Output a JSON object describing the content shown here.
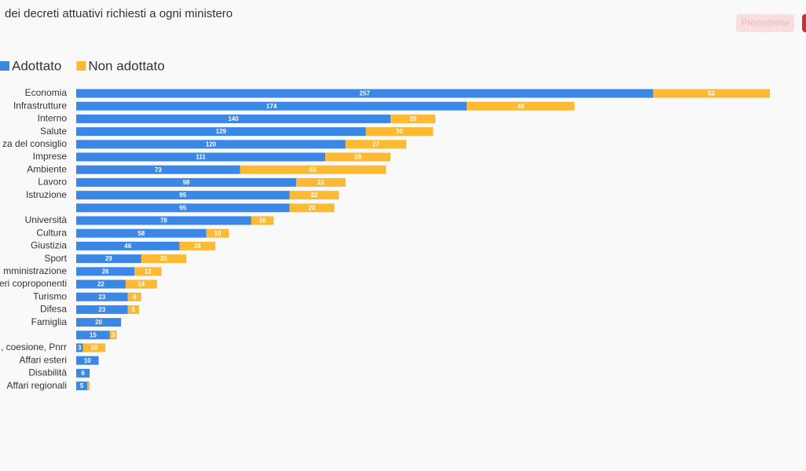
{
  "chart_data": {
    "type": "stacked-bar-horizontal",
    "title": "dei decreti attuativi richiesti a ogni ministero",
    "categories": [
      "Economia",
      "Infrastrutture",
      "Interno",
      "Salute",
      "za del consiglio",
      "Imprese",
      "Ambiente",
      "Lavoro",
      "Istruzione",
      null,
      "Università",
      "Cultura",
      "Giustizia",
      "Sport",
      "mministrazione",
      "eri coproponenti",
      "Turismo",
      "Difesa",
      "Famiglia",
      null,
      ", coesione, Pnrr",
      "Affari esteri",
      "Disabilità",
      "Affari regionali"
    ],
    "series": [
      {
        "name": "Adottato",
        "color": "#3a87e6",
        "values": [
          257,
          174,
          140,
          129,
          120,
          111,
          73,
          98,
          95,
          95,
          78,
          58,
          46,
          29,
          26,
          22,
          23,
          23,
          20,
          15,
          3,
          10,
          6,
          5
        ]
      },
      {
        "name": "Non adottato",
        "color": "#fbb934",
        "values": [
          52,
          48,
          20,
          30,
          27,
          29,
          65,
          22,
          22,
          20,
          10,
          10,
          16,
          20,
          12,
          14,
          6,
          5,
          null,
          3,
          10,
          null,
          null,
          1
        ]
      }
    ],
    "legend": "top-left"
  },
  "ui": {
    "prev_button": "Precedente"
  }
}
